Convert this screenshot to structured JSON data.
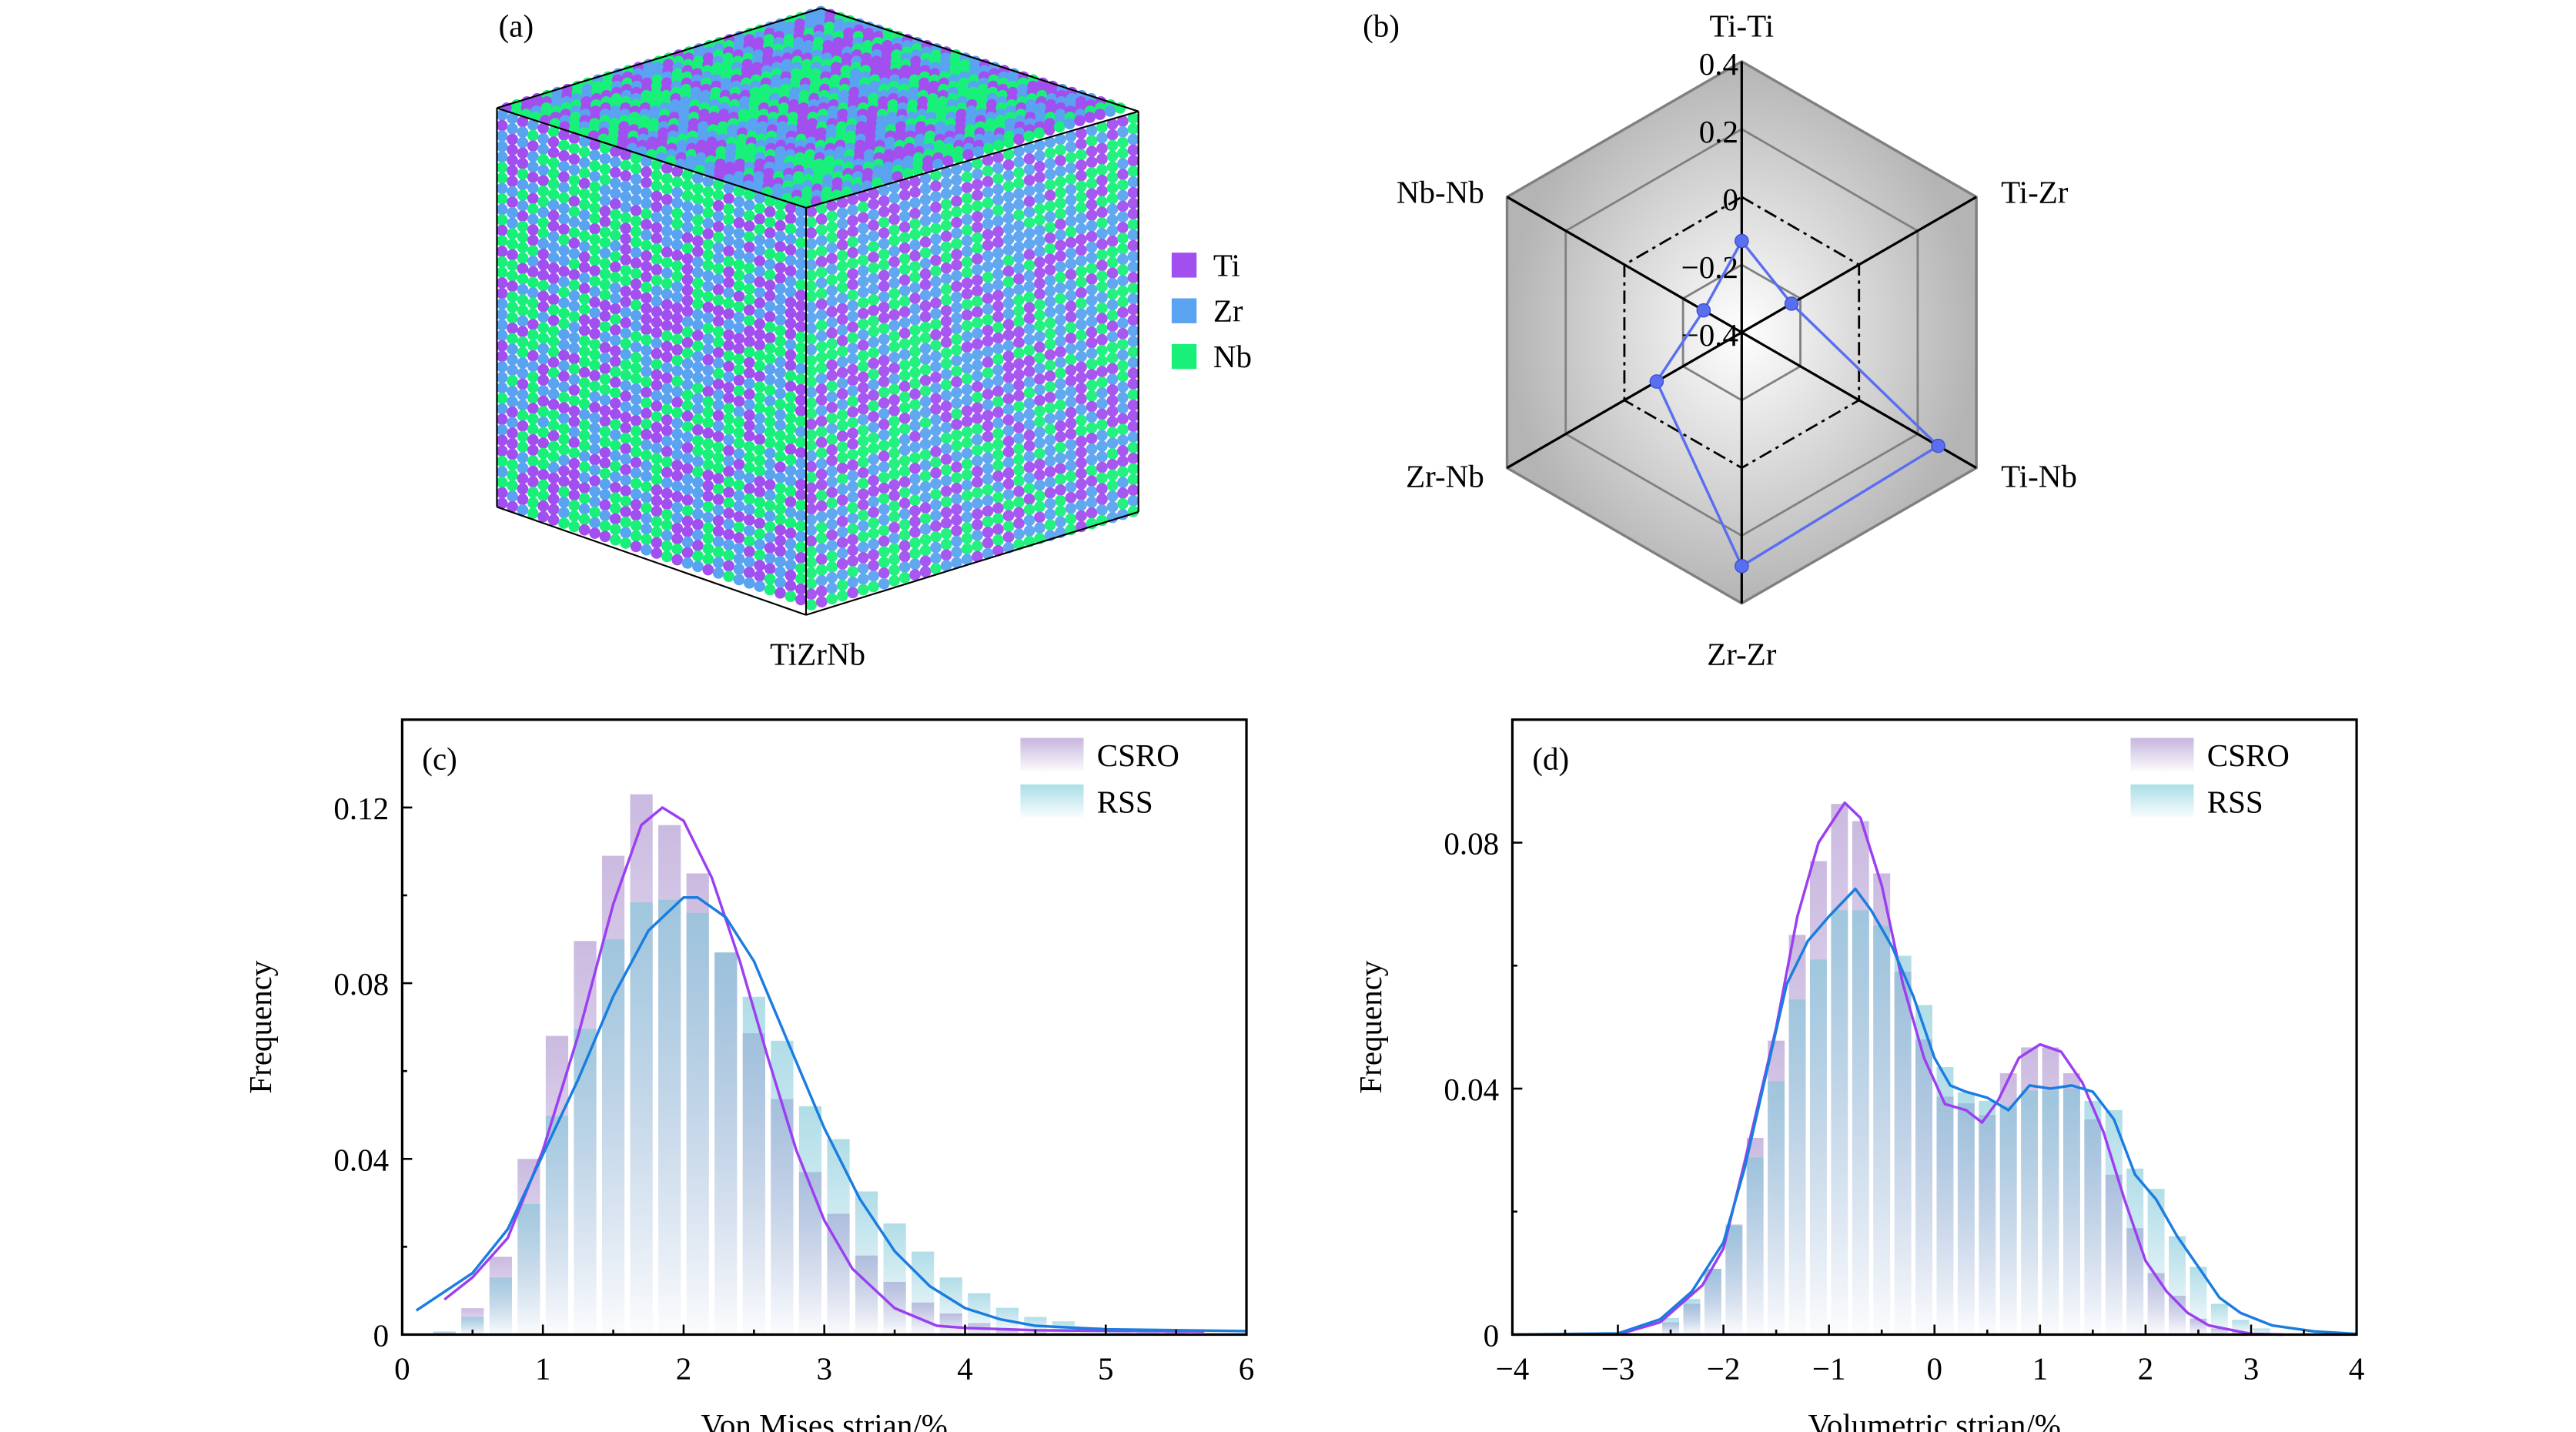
{
  "panel_a": {
    "label": "(a)",
    "caption": "TiZrNb",
    "legend": [
      {
        "name": "Ti",
        "color": "#a24ff0"
      },
      {
        "name": "Zr",
        "color": "#5aa3f0"
      },
      {
        "name": "Nb",
        "color": "#19f07a"
      }
    ],
    "edge_color": "#000000"
  },
  "chart_data": [
    {
      "panel": "(b)",
      "type": "radar",
      "axes": [
        "Ti-Ti",
        "Ti-Zr",
        "Ti-Nb",
        "Zr-Zr",
        "Zr-Nb",
        "Nb-Nb"
      ],
      "values": [
        -0.13,
        -0.23,
        0.27,
        0.29,
        -0.11,
        -0.27
      ],
      "range": [
        -0.4,
        0.4
      ],
      "ring_ticks": [
        "0.4",
        "0.2",
        "0",
        "−0.2",
        "−0.4"
      ],
      "ring_values": [
        0.4,
        0.2,
        0,
        -0.2,
        -0.4
      ],
      "dashed_ring": 0,
      "line_color": "#5a6ef0"
    },
    {
      "panel": "(c)",
      "type": "bar",
      "xlabel": "Von Mises strian/%",
      "ylabel": "Frequency",
      "xlim": [
        0,
        6
      ],
      "ylim": [
        0,
        0.14
      ],
      "xticks": [
        "0",
        "1",
        "2",
        "3",
        "4",
        "5",
        "6"
      ],
      "xtick_values": [
        0,
        1,
        2,
        3,
        4,
        5,
        6
      ],
      "yticks": [
        "0",
        "0.04",
        "0.08",
        "0.12"
      ],
      "ytick_values": [
        0,
        0.04,
        0.08,
        0.12
      ],
      "legend_position": "top-right",
      "bin_width": 0.2,
      "bins": [
        0.3,
        0.5,
        0.7,
        0.9,
        1.1,
        1.3,
        1.5,
        1.7,
        1.9,
        2.1,
        2.3,
        2.5,
        2.7,
        2.9,
        3.1,
        3.3,
        3.5,
        3.7,
        3.9,
        4.1,
        4.3,
        4.5,
        4.7,
        4.9,
        5.1,
        5.3,
        5.5,
        5.7
      ],
      "series": [
        {
          "name": "CSRO",
          "bar_color": "#b9a3d6",
          "curve_color": "#9b3ff0",
          "values": [
            0.0005,
            0.006,
            0.0177,
            0.04,
            0.068,
            0.0896,
            0.109,
            0.123,
            0.116,
            0.105,
            0.087,
            0.0686,
            0.0536,
            0.037,
            0.0275,
            0.018,
            0.012,
            0.0073,
            0.0048,
            0.0026,
            0.001,
            0.0005,
            0.0003,
            0.0002,
            0.0001,
            0.0001,
            0.0003,
            0.0002
          ],
          "curve": [
            [
              0.3,
              0.008
            ],
            [
              0.5,
              0.013
            ],
            [
              0.75,
              0.022
            ],
            [
              1.0,
              0.042
            ],
            [
              1.25,
              0.068
            ],
            [
              1.5,
              0.098
            ],
            [
              1.7,
              0.116
            ],
            [
              1.85,
              0.12
            ],
            [
              2.0,
              0.117
            ],
            [
              2.2,
              0.104
            ],
            [
              2.4,
              0.085
            ],
            [
              2.6,
              0.063
            ],
            [
              2.8,
              0.042
            ],
            [
              3.0,
              0.026
            ],
            [
              3.2,
              0.015
            ],
            [
              3.5,
              0.006
            ],
            [
              3.8,
              0.002
            ],
            [
              4.0,
              0.0015
            ],
            [
              4.5,
              0.001
            ],
            [
              5.7,
              0.0007
            ]
          ]
        },
        {
          "name": "RSS",
          "bar_color": "#94d6e2",
          "curve_color": "#1a7de0",
          "values": [
            0.0007,
            0.004,
            0.013,
            0.0297,
            0.0498,
            0.0696,
            0.09,
            0.0984,
            0.099,
            0.096,
            0.087,
            0.0769,
            0.0669,
            0.052,
            0.0445,
            0.0326,
            0.0253,
            0.0189,
            0.013,
            0.0094,
            0.0061,
            0.004,
            0.003,
            0.0017,
            0.001,
            0.0005,
            0.0004,
            0.0003
          ],
          "curve": [
            [
              0.1,
              0.0055
            ],
            [
              0.5,
              0.014
            ],
            [
              0.75,
              0.024
            ],
            [
              1.0,
              0.041
            ],
            [
              1.25,
              0.058
            ],
            [
              1.5,
              0.077
            ],
            [
              1.75,
              0.092
            ],
            [
              2.0,
              0.0995
            ],
            [
              2.1,
              0.0995
            ],
            [
              2.3,
              0.095
            ],
            [
              2.5,
              0.085
            ],
            [
              2.75,
              0.066
            ],
            [
              3.0,
              0.047
            ],
            [
              3.25,
              0.031
            ],
            [
              3.5,
              0.019
            ],
            [
              3.75,
              0.011
            ],
            [
              4.0,
              0.006
            ],
            [
              4.25,
              0.0035
            ],
            [
              4.5,
              0.002
            ],
            [
              5.0,
              0.0012
            ],
            [
              6.0,
              0.0008
            ]
          ]
        }
      ]
    },
    {
      "panel": "(d)",
      "type": "bar",
      "xlabel": "Volumetric strian/%",
      "ylabel": "Frequency",
      "xlim": [
        -4,
        4
      ],
      "ylim": [
        0,
        0.1
      ],
      "xticks": [
        "−4",
        "−3",
        "−2",
        "−1",
        "0",
        "1",
        "2",
        "3",
        "4"
      ],
      "xtick_values": [
        -4,
        -3,
        -2,
        -1,
        0,
        1,
        2,
        3,
        4
      ],
      "yticks": [
        "0",
        "0.04",
        "0.08"
      ],
      "ytick_values": [
        0,
        0.04,
        0.08
      ],
      "legend_position": "top-right",
      "bin_width": 0.2,
      "bins": [
        -2.5,
        -2.3,
        -2.1,
        -1.9,
        -1.7,
        -1.5,
        -1.3,
        -1.1,
        -0.9,
        -0.7,
        -0.5,
        -0.3,
        -0.1,
        0.1,
        0.3,
        0.5,
        0.7,
        0.9,
        1.1,
        1.3,
        1.5,
        1.7,
        1.9,
        2.1,
        2.3,
        2.5,
        2.7,
        2.9,
        3.1
      ],
      "series": [
        {
          "name": "CSRO",
          "bar_color": "#b9a3d6",
          "curve_color": "#9b3ff0",
          "values": [
            0.002,
            0.005,
            0.0107,
            0.0179,
            0.032,
            0.0478,
            0.065,
            0.077,
            0.0863,
            0.0835,
            0.075,
            0.059,
            0.048,
            0.0387,
            0.0376,
            0.0357,
            0.0425,
            0.0467,
            0.0467,
            0.0425,
            0.035,
            0.026,
            0.0173,
            0.01,
            0.0063,
            0.0026,
            0.001,
            0.0005,
            0.0003
          ],
          "curve": [
            [
              -3,
              0
            ],
            [
              -2.6,
              0.002
            ],
            [
              -2.2,
              0.008
            ],
            [
              -2.0,
              0.014
            ],
            [
              -1.8,
              0.028
            ],
            [
              -1.5,
              0.05
            ],
            [
              -1.3,
              0.068
            ],
            [
              -1.1,
              0.08
            ],
            [
              -0.85,
              0.0865
            ],
            [
              -0.7,
              0.084
            ],
            [
              -0.5,
              0.073
            ],
            [
              -0.3,
              0.057
            ],
            [
              -0.1,
              0.045
            ],
            [
              0.1,
              0.0375
            ],
            [
              0.3,
              0.0365
            ],
            [
              0.45,
              0.0345
            ],
            [
              0.6,
              0.038
            ],
            [
              0.8,
              0.045
            ],
            [
              1.0,
              0.0472
            ],
            [
              1.2,
              0.046
            ],
            [
              1.4,
              0.041
            ],
            [
              1.6,
              0.033
            ],
            [
              1.8,
              0.022
            ],
            [
              2.0,
              0.012
            ],
            [
              2.2,
              0.007
            ],
            [
              2.4,
              0.0035
            ],
            [
              2.6,
              0.0015
            ],
            [
              3.0,
              0.0001
            ],
            [
              3.3,
              0
            ]
          ]
        },
        {
          "name": "RSS",
          "bar_color": "#94d6e2",
          "curve_color": "#1a7de0",
          "values": [
            0.0027,
            0.0058,
            0.0107,
            0.0177,
            0.0288,
            0.0412,
            0.0545,
            0.061,
            0.069,
            0.069,
            0.0665,
            0.0616,
            0.0536,
            0.0435,
            0.0394,
            0.038,
            0.0372,
            0.0397,
            0.0397,
            0.04,
            0.038,
            0.0365,
            0.027,
            0.0237,
            0.016,
            0.011,
            0.005,
            0.0024,
            0.001
          ],
          "curve": [
            [
              -4,
              0
            ],
            [
              -3,
              0.0002
            ],
            [
              -2.6,
              0.0025
            ],
            [
              -2.3,
              0.007
            ],
            [
              -2.0,
              0.015
            ],
            [
              -1.8,
              0.027
            ],
            [
              -1.6,
              0.042
            ],
            [
              -1.4,
              0.057
            ],
            [
              -1.2,
              0.064
            ],
            [
              -1.0,
              0.068
            ],
            [
              -0.75,
              0.0725
            ],
            [
              -0.6,
              0.069
            ],
            [
              -0.4,
              0.063
            ],
            [
              -0.2,
              0.055
            ],
            [
              0,
              0.045
            ],
            [
              0.15,
              0.0405
            ],
            [
              0.3,
              0.0395
            ],
            [
              0.5,
              0.0385
            ],
            [
              0.7,
              0.0365
            ],
            [
              0.9,
              0.0405
            ],
            [
              1.1,
              0.04
            ],
            [
              1.3,
              0.0405
            ],
            [
              1.5,
              0.0395
            ],
            [
              1.7,
              0.035
            ],
            [
              1.9,
              0.026
            ],
            [
              2.1,
              0.022
            ],
            [
              2.3,
              0.016
            ],
            [
              2.5,
              0.011
            ],
            [
              2.7,
              0.006
            ],
            [
              2.9,
              0.0035
            ],
            [
              3.2,
              0.0015
            ],
            [
              3.6,
              0.0005
            ],
            [
              4.0,
              0.0001
            ]
          ]
        }
      ]
    }
  ]
}
